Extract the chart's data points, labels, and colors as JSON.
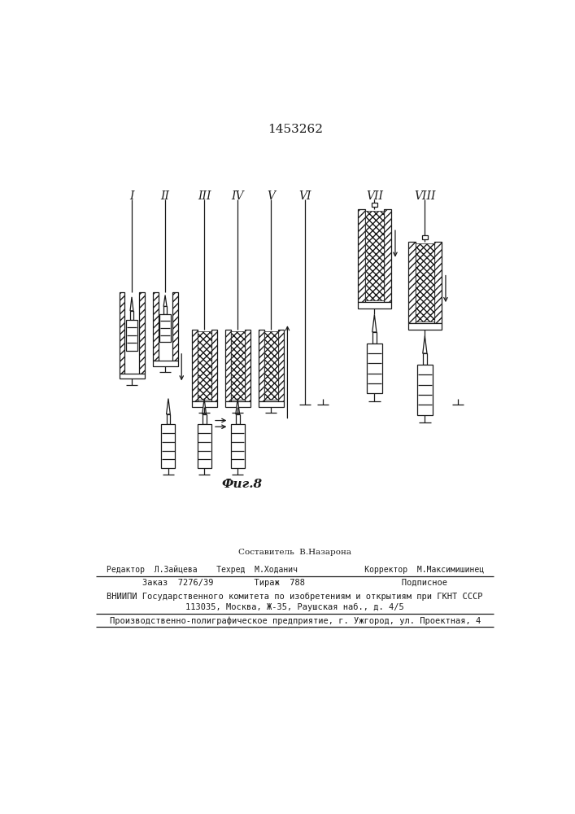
{
  "patent_number": "1453262",
  "fig_label": "Фиг.8",
  "roman_numerals": [
    "I",
    "II",
    "III",
    "IV",
    "V",
    "VI",
    "VII",
    "VIII"
  ],
  "stage_x": [
    95,
    148,
    210,
    263,
    316,
    370,
    480,
    560
  ],
  "composer_line": "Составитель  В.Назарона",
  "editor_line": "Редактор  Л.Зайцева    Техред  М.Ходанич              Корректор  М.Максимишинец",
  "order_line": "Заказ  7276/39        Тираж  788                   Подписное",
  "vniip_line1": "ВНИИПИ Государственного комитета по изобретениям и открытиям при ГКНТ СССР",
  "vniip_line2": "113035, Москва, Ж-35, Раушская наб., д. 4/5",
  "prod_line": "Производственно-полиграфическое предприятие, г. Ужгород, ул. Проектная, 4",
  "bg_color": "#ffffff",
  "line_color": "#1a1a1a"
}
